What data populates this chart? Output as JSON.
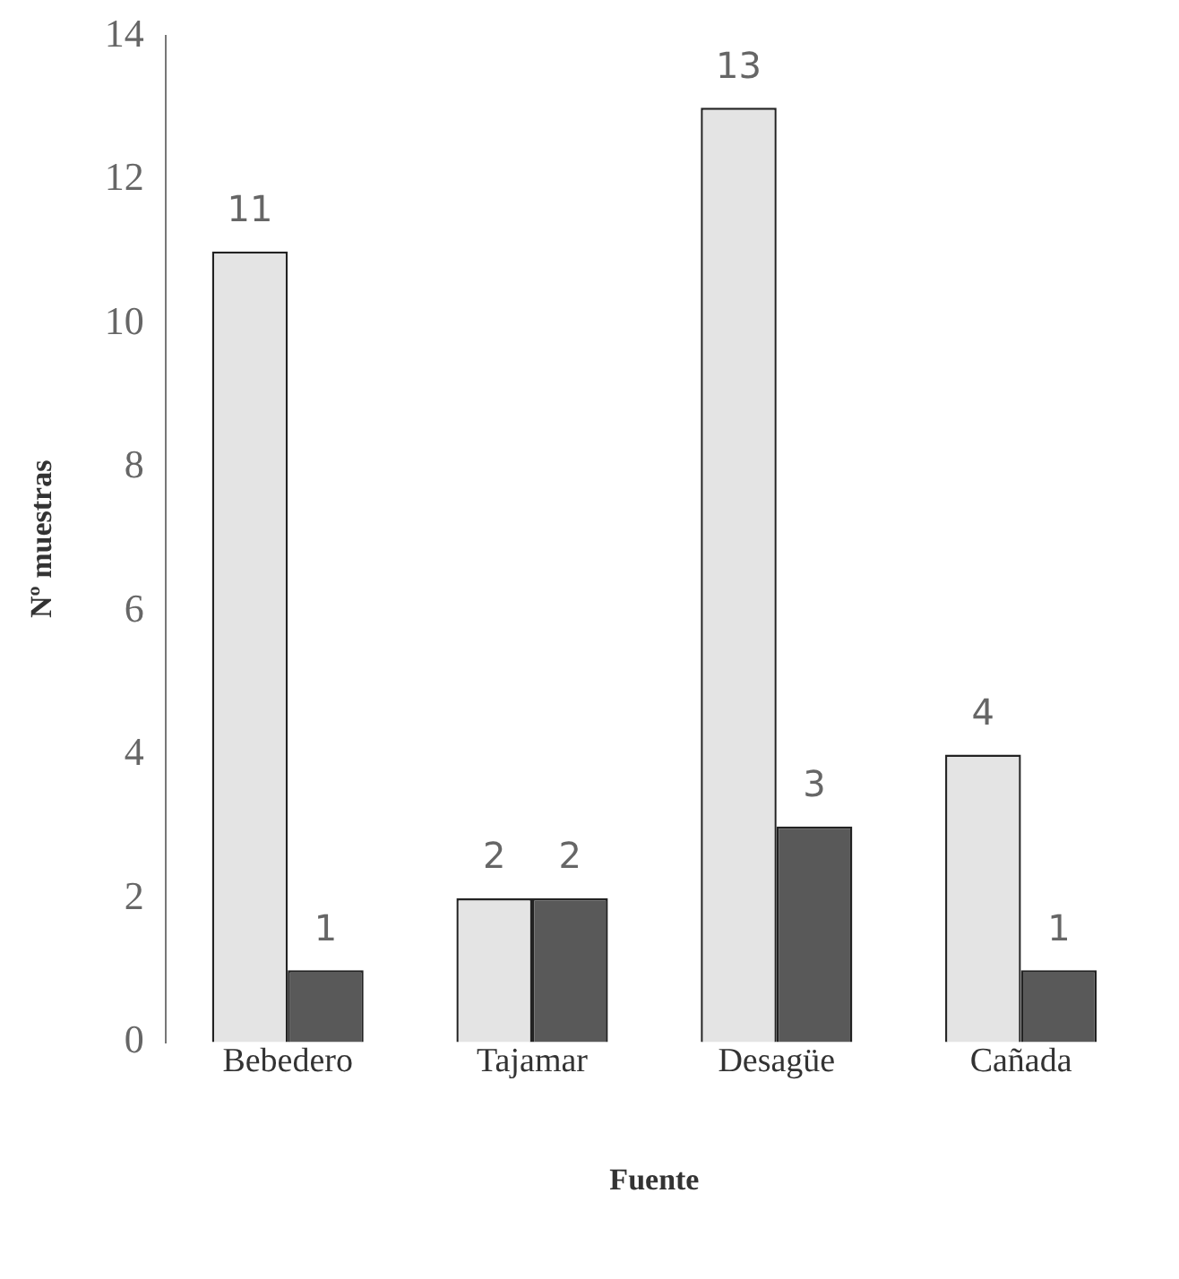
{
  "chart_data": {
    "type": "bar",
    "xlabel": "Fuente",
    "ylabel": "Nº muestras",
    "categories": [
      "Bebedero",
      "Tajamar",
      "Desagüe",
      "Cañada"
    ],
    "series": [
      {
        "color": "#e4e4e4",
        "values": [
          11,
          2,
          13,
          4
        ]
      },
      {
        "color": "#595959",
        "values": [
          1,
          2,
          3,
          1
        ]
      }
    ],
    "ylim": [
      0,
      14
    ],
    "yticks": [
      0,
      2,
      4,
      6,
      8,
      10,
      12,
      14
    ],
    "data_labels": true,
    "grid": false,
    "legend": false
  }
}
